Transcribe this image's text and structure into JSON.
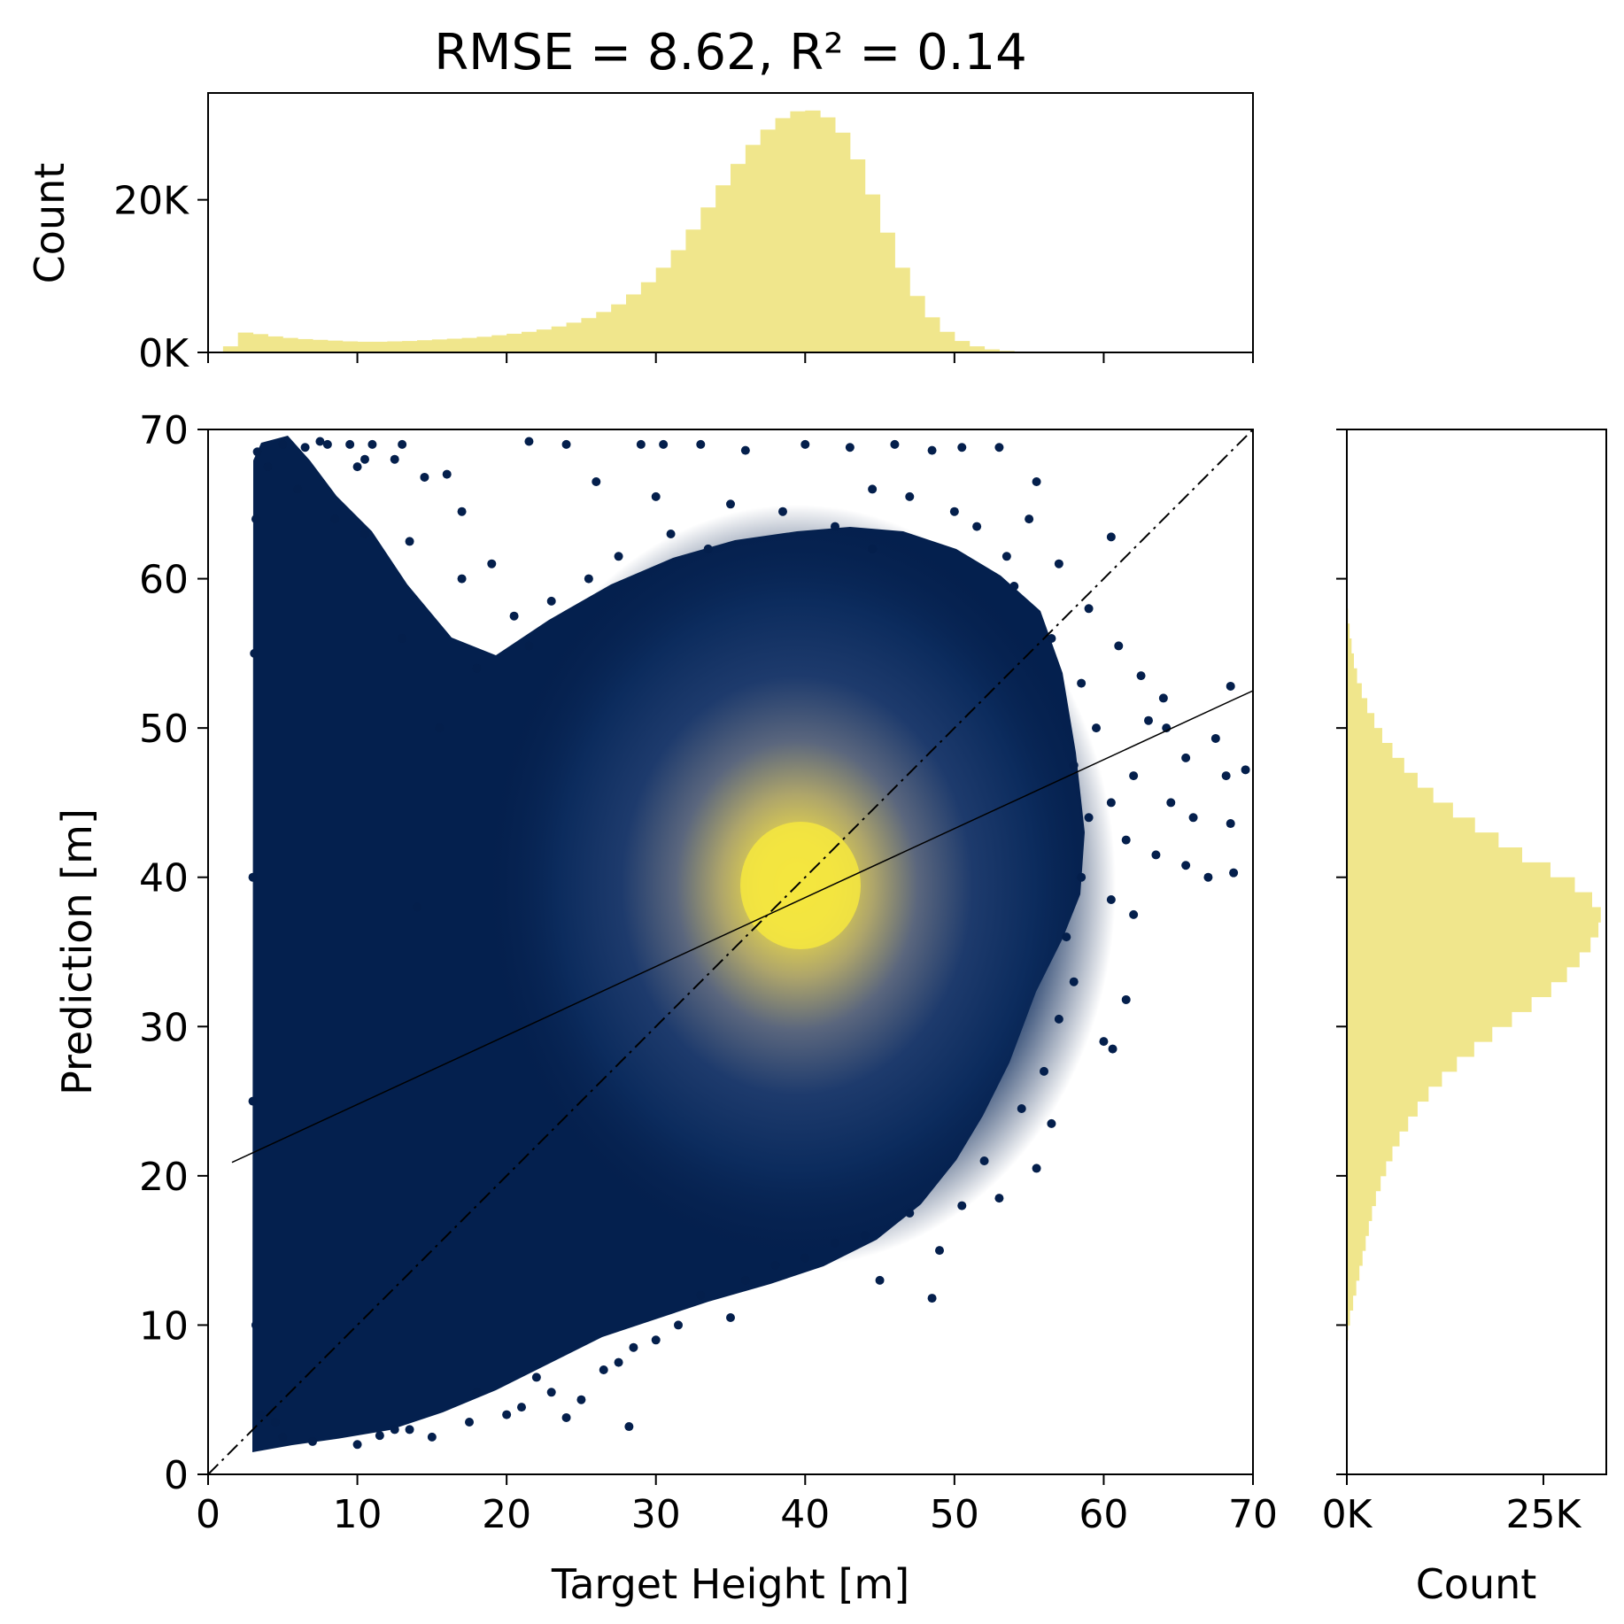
{
  "chart_data": [
    {
      "type": "scatter",
      "name": "main-scatter",
      "title": "RMSE = 8.62, R² = 0.14",
      "xlabel": "Target Height [m]",
      "ylabel": "Prediction [m]",
      "xlim": [
        0,
        70
      ],
      "ylim": [
        0,
        70
      ],
      "xticks": [
        0,
        10,
        20,
        30,
        40,
        50,
        60,
        70
      ],
      "yticks": [
        0,
        10,
        20,
        30,
        40,
        50,
        60,
        70
      ],
      "grid": false,
      "point_color": "#041f4c",
      "density_peak": {
        "x": 39.5,
        "y": 39.5
      },
      "density_peak_color": "#f3e63f",
      "identity_line": {
        "x": [
          0,
          70
        ],
        "y": [
          0,
          70
        ],
        "style": "dash-dot"
      },
      "fit_line": {
        "x": [
          1.6,
          70
        ],
        "y": [
          20.9,
          52.5
        ],
        "style": "solid"
      },
      "outliers": [
        [
          5.0,
          69.0
        ],
        [
          6.5,
          68.8
        ],
        [
          8.0,
          69.0
        ],
        [
          9.5,
          69.0
        ],
        [
          11.0,
          69.0
        ],
        [
          13.0,
          69.0
        ],
        [
          21.5,
          69.2
        ],
        [
          24.0,
          69.0
        ],
        [
          29.0,
          69.0
        ],
        [
          30.5,
          69.0
        ],
        [
          33.0,
          69.0
        ],
        [
          36.0,
          68.6
        ],
        [
          40.0,
          69.0
        ],
        [
          43.0,
          68.8
        ],
        [
          46.0,
          69.0
        ],
        [
          48.5,
          68.6
        ],
        [
          50.5,
          68.8
        ],
        [
          53.0,
          68.8
        ],
        [
          12.5,
          68.0
        ],
        [
          10.0,
          67.5
        ],
        [
          16.0,
          67.0
        ],
        [
          26.0,
          66.5
        ],
        [
          30.0,
          65.5
        ],
        [
          35.0,
          65.0
        ],
        [
          38.5,
          64.5
        ],
        [
          42.0,
          63.5
        ],
        [
          44.5,
          62.0
        ],
        [
          55.5,
          66.5
        ],
        [
          55.0,
          64.0
        ],
        [
          53.5,
          61.5
        ],
        [
          57.0,
          61.0
        ],
        [
          60.5,
          62.8
        ],
        [
          59.0,
          58.0
        ],
        [
          61.0,
          55.5
        ],
        [
          62.5,
          53.5
        ],
        [
          64.0,
          52.0
        ],
        [
          68.5,
          52.8
        ],
        [
          63.0,
          50.5
        ],
        [
          64.2,
          50.0
        ],
        [
          65.5,
          48.0
        ],
        [
          67.5,
          49.3
        ],
        [
          69.5,
          47.2
        ],
        [
          68.2,
          46.8
        ],
        [
          64.5,
          45.0
        ],
        [
          66.0,
          44.0
        ],
        [
          68.5,
          43.6
        ],
        [
          60.5,
          45.0
        ],
        [
          62.0,
          46.8
        ],
        [
          61.5,
          42.5
        ],
        [
          63.5,
          41.5
        ],
        [
          65.5,
          40.8
        ],
        [
          67.0,
          40.0
        ],
        [
          68.7,
          40.3
        ],
        [
          60.5,
          38.5
        ],
        [
          62.0,
          37.5
        ],
        [
          61.5,
          31.8
        ],
        [
          60.0,
          29.0
        ],
        [
          60.6,
          28.5
        ],
        [
          56.5,
          23.5
        ],
        [
          55.5,
          20.5
        ],
        [
          53.0,
          18.5
        ],
        [
          49.0,
          15.0
        ],
        [
          48.5,
          11.8
        ],
        [
          45.0,
          13.0
        ],
        [
          40.0,
          14.5
        ],
        [
          36.0,
          13.0
        ],
        [
          33.0,
          12.0
        ],
        [
          28.5,
          8.5
        ],
        [
          27.5,
          7.5
        ],
        [
          25.0,
          5.0
        ],
        [
          24.0,
          3.8
        ],
        [
          28.2,
          3.2
        ],
        [
          20.0,
          4.0
        ],
        [
          15.0,
          2.5
        ],
        [
          12.5,
          3.0
        ],
        [
          10.0,
          2.0
        ],
        [
          18.0,
          5.5
        ],
        [
          22.0,
          6.5
        ],
        [
          14.0,
          38.0
        ],
        [
          15.5,
          50.0
        ],
        [
          13.0,
          56.0
        ],
        [
          18.0,
          54.0
        ],
        [
          20.5,
          57.5
        ],
        [
          23.0,
          58.5
        ],
        [
          25.5,
          60.0
        ],
        [
          27.5,
          61.5
        ],
        [
          31.0,
          63.0
        ],
        [
          33.5,
          62.0
        ],
        [
          13.5,
          62.5
        ],
        [
          10.5,
          63.0
        ],
        [
          8.5,
          64.0
        ],
        [
          6.0,
          66.0
        ],
        [
          4.0,
          67.5
        ],
        [
          17.0,
          60.0
        ],
        [
          19.0,
          61.0
        ],
        [
          21.5,
          55.5
        ],
        [
          44.5,
          66.0
        ],
        [
          47.0,
          65.5
        ],
        [
          50.0,
          64.5
        ],
        [
          51.5,
          63.5
        ],
        [
          54.0,
          59.5
        ],
        [
          56.5,
          56.0
        ],
        [
          58.5,
          53.0
        ],
        [
          59.5,
          50.0
        ],
        [
          58.0,
          47.5
        ],
        [
          59.0,
          44.0
        ],
        [
          58.5,
          40.0
        ],
        [
          57.5,
          36.0
        ],
        [
          58.0,
          33.0
        ],
        [
          57.0,
          30.5
        ],
        [
          56.0,
          27.0
        ],
        [
          54.5,
          24.5
        ],
        [
          52.0,
          21.0
        ],
        [
          50.5,
          18.0
        ],
        [
          47.0,
          17.5
        ],
        [
          44.0,
          16.0
        ],
        [
          42.0,
          15.5
        ],
        [
          38.0,
          14.0
        ],
        [
          35.0,
          10.5
        ],
        [
          31.5,
          10.0
        ],
        [
          30.0,
          9.0
        ],
        [
          26.5,
          7.0
        ],
        [
          23.0,
          5.5
        ],
        [
          21.0,
          4.5
        ],
        [
          17.5,
          3.5
        ],
        [
          13.5,
          3.0
        ],
        [
          11.5,
          2.6
        ],
        [
          7.0,
          2.2
        ],
        [
          5.0,
          2.5
        ],
        [
          4.5,
          3.5
        ],
        [
          3.5,
          4.0
        ],
        [
          3.2,
          10.0
        ],
        [
          3.0,
          25.0
        ],
        [
          3.0,
          40.0
        ],
        [
          3.1,
          55.0
        ],
        [
          3.2,
          64.0
        ],
        [
          3.3,
          68.5
        ],
        [
          7.5,
          69.2
        ],
        [
          10.5,
          68.0
        ],
        [
          14.5,
          66.8
        ],
        [
          17.0,
          64.5
        ]
      ]
    },
    {
      "type": "bar",
      "name": "top-histogram",
      "orientation": "vertical",
      "xlim": [
        0,
        70
      ],
      "ylim": [
        0,
        34000
      ],
      "yticks": [
        0,
        20000
      ],
      "ytick_labels": [
        "0K",
        "20K"
      ],
      "ylabel": "Count",
      "bin_width": 1,
      "bin_start": 1,
      "values": [
        800,
        2600,
        2400,
        2100,
        1900,
        1750,
        1650,
        1550,
        1450,
        1400,
        1400,
        1450,
        1500,
        1600,
        1700,
        1800,
        1900,
        2050,
        2250,
        2450,
        2700,
        3000,
        3400,
        3900,
        4500,
        5300,
        6300,
        7600,
        9200,
        11100,
        13400,
        16100,
        19000,
        21900,
        24700,
        27200,
        29200,
        30700,
        31600,
        31700,
        30800,
        28800,
        25300,
        20700,
        15700,
        11100,
        7400,
        4600,
        2700,
        1500,
        800,
        400,
        200,
        100,
        50,
        20
      ],
      "color": "#f0e68c"
    },
    {
      "type": "bar",
      "name": "right-histogram",
      "orientation": "horizontal",
      "ylim": [
        0,
        70
      ],
      "xlim": [
        0,
        33000
      ],
      "xticks": [
        0,
        25000
      ],
      "xtick_labels": [
        "0K",
        "25K"
      ],
      "xlabel": "Count",
      "bin_width": 1,
      "bin_start": 8,
      "values": [
        40,
        150,
        400,
        800,
        1200,
        1600,
        2000,
        2400,
        2800,
        3200,
        3700,
        4300,
        5000,
        5800,
        6700,
        7800,
        9000,
        10400,
        12100,
        14000,
        16200,
        18500,
        21000,
        23500,
        26000,
        28000,
        29600,
        31000,
        32000,
        32300,
        31200,
        29000,
        25900,
        22300,
        19300,
        16300,
        13500,
        11000,
        9000,
        7300,
        5800,
        4500,
        3500,
        2600,
        1900,
        1300,
        900,
        600,
        350,
        150
      ],
      "color": "#f0e68c"
    }
  ]
}
